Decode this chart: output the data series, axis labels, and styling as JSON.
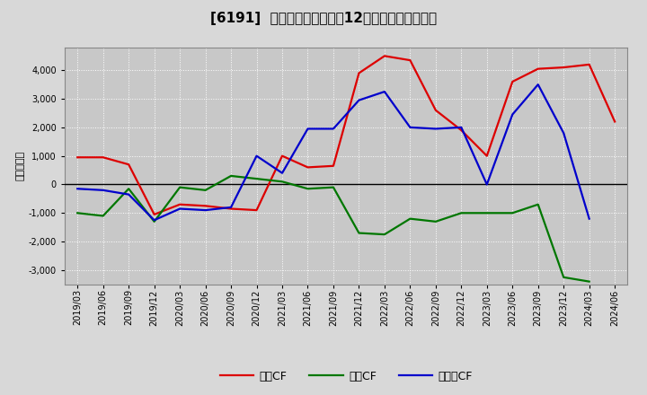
{
  "title": "[6191]  キャッシュフローの12か月移動合計の推移",
  "ylabel": "（百万円）",
  "legend_op": "営業CF",
  "legend_inv": "投資CF",
  "legend_free": "フリーCF",
  "background_color": "#d8d8d8",
  "plot_bg_color": "#c8c8c8",
  "x_labels": [
    "2019/03",
    "2019/06",
    "2019/09",
    "2019/12",
    "2020/03",
    "2020/06",
    "2020/09",
    "2020/12",
    "2021/03",
    "2021/06",
    "2021/09",
    "2021/12",
    "2022/03",
    "2022/06",
    "2022/09",
    "2022/12",
    "2023/03",
    "2023/06",
    "2023/09",
    "2023/12",
    "2024/03",
    "2024/06"
  ],
  "operating_cf": [
    950,
    950,
    700,
    -1050,
    -700,
    -750,
    -850,
    -900,
    1000,
    600,
    650,
    3900,
    4500,
    4350,
    2600,
    1900,
    1000,
    3600,
    4050,
    4100,
    4200,
    2200
  ],
  "investing_cf": [
    -1000,
    -1100,
    -150,
    -1300,
    -100,
    -200,
    300,
    200,
    100,
    -150,
    -100,
    -1700,
    -1750,
    -1200,
    -1300,
    -1000,
    -1000,
    -1000,
    -700,
    -3250,
    -3400,
    null
  ],
  "free_cf": [
    -150,
    -200,
    -350,
    -1250,
    -850,
    -900,
    -800,
    1000,
    400,
    1950,
    1950,
    2950,
    3250,
    2000,
    1950,
    2000,
    0,
    2450,
    3500,
    1800,
    -1200,
    null
  ],
  "operating_color": "#dd0000",
  "investing_color": "#007700",
  "free_color": "#0000cc",
  "ylim": [
    -3500,
    4800
  ],
  "yticks": [
    -3000,
    -2000,
    -1000,
    0,
    1000,
    2000,
    3000,
    4000
  ],
  "line_width": 1.6,
  "title_fontsize": 11,
  "tick_fontsize": 7,
  "ylabel_fontsize": 8,
  "legend_fontsize": 9
}
